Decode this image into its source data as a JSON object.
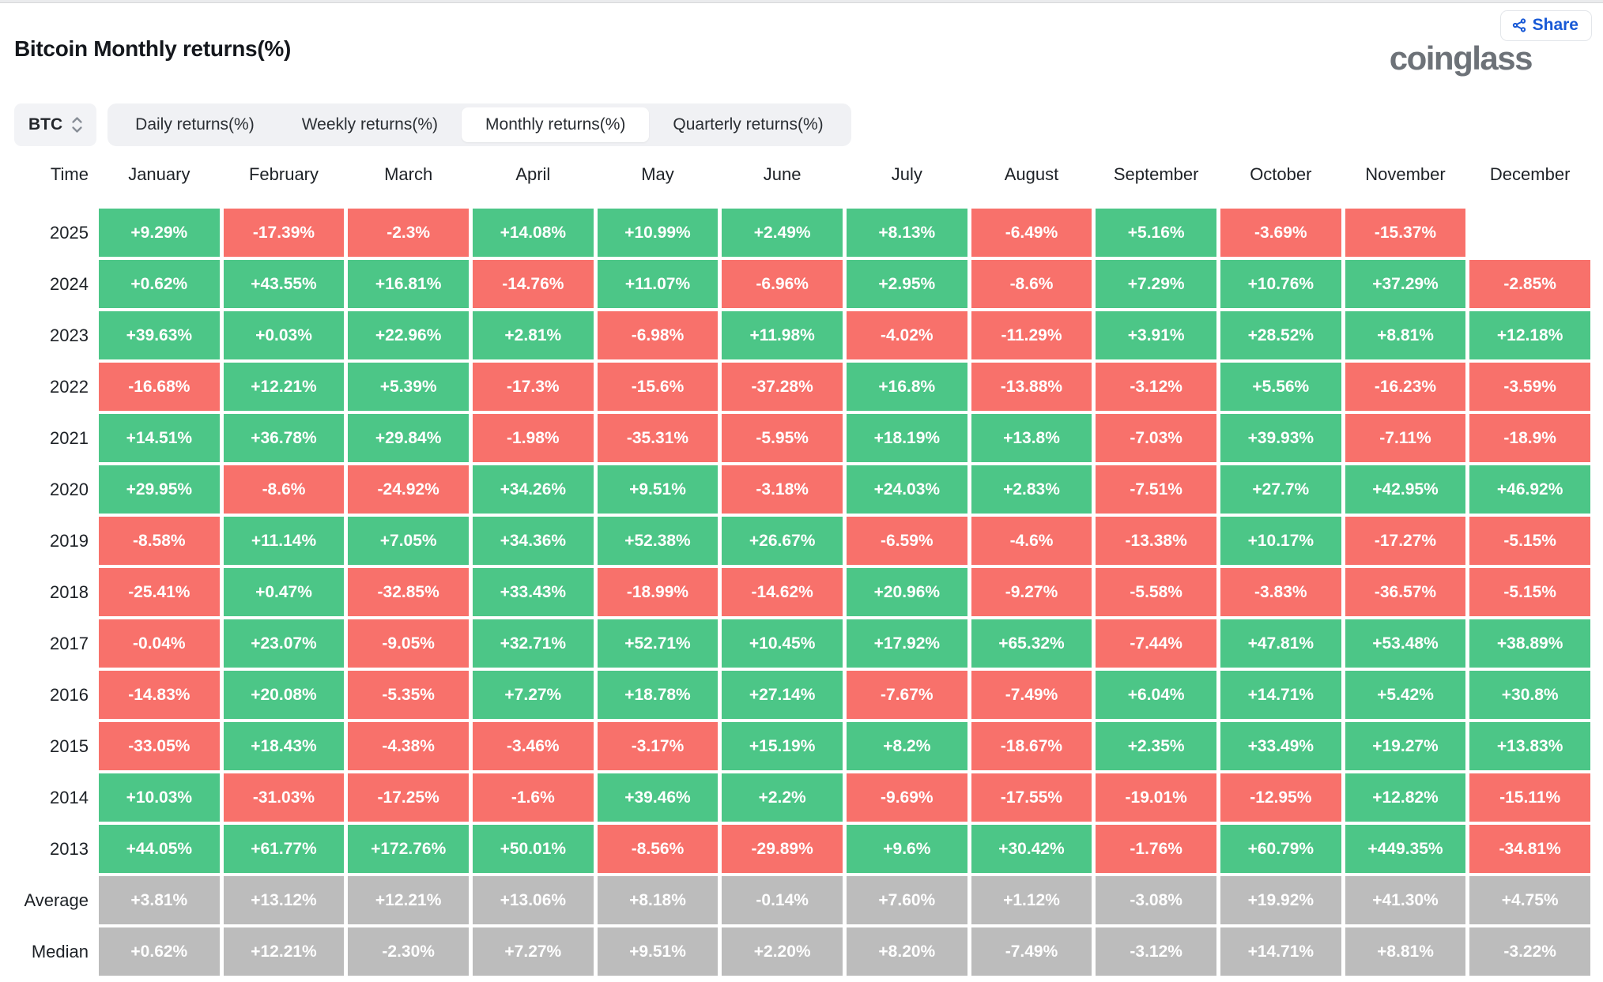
{
  "header": {
    "title": "Bitcoin Monthly returns(%)",
    "brand": "coinglass",
    "share_label": "Share"
  },
  "controls": {
    "symbol_select": {
      "value": "BTC"
    },
    "tabs": [
      {
        "label": "Daily returns(%)",
        "selected": false
      },
      {
        "label": "Weekly returns(%)",
        "selected": false
      },
      {
        "label": "Monthly returns(%)",
        "selected": true
      },
      {
        "label": "Quarterly returns(%)",
        "selected": false
      }
    ]
  },
  "colors": {
    "positive": "#4cc687",
    "negative": "#f8716b",
    "summary": "#bcbcbc",
    "accent_blue": "#1859d6"
  },
  "chart_data": {
    "type": "heatmap",
    "title": "Bitcoin Monthly returns(%)",
    "columns": [
      "Time",
      "January",
      "February",
      "March",
      "April",
      "May",
      "June",
      "July",
      "August",
      "September",
      "October",
      "November",
      "December"
    ],
    "rows": [
      {
        "label": "2025",
        "type": "data",
        "values": [
          "+9.29%",
          "-17.39%",
          "-2.3%",
          "+14.08%",
          "+10.99%",
          "+2.49%",
          "+8.13%",
          "-6.49%",
          "+5.16%",
          "-3.69%",
          "-15.37%",
          ""
        ]
      },
      {
        "label": "2024",
        "type": "data",
        "values": [
          "+0.62%",
          "+43.55%",
          "+16.81%",
          "-14.76%",
          "+11.07%",
          "-6.96%",
          "+2.95%",
          "-8.6%",
          "+7.29%",
          "+10.76%",
          "+37.29%",
          "-2.85%"
        ]
      },
      {
        "label": "2023",
        "type": "data",
        "values": [
          "+39.63%",
          "+0.03%",
          "+22.96%",
          "+2.81%",
          "-6.98%",
          "+11.98%",
          "-4.02%",
          "-11.29%",
          "+3.91%",
          "+28.52%",
          "+8.81%",
          "+12.18%"
        ]
      },
      {
        "label": "2022",
        "type": "data",
        "values": [
          "-16.68%",
          "+12.21%",
          "+5.39%",
          "-17.3%",
          "-15.6%",
          "-37.28%",
          "+16.8%",
          "-13.88%",
          "-3.12%",
          "+5.56%",
          "-16.23%",
          "-3.59%"
        ]
      },
      {
        "label": "2021",
        "type": "data",
        "values": [
          "+14.51%",
          "+36.78%",
          "+29.84%",
          "-1.98%",
          "-35.31%",
          "-5.95%",
          "+18.19%",
          "+13.8%",
          "-7.03%",
          "+39.93%",
          "-7.11%",
          "-18.9%"
        ]
      },
      {
        "label": "2020",
        "type": "data",
        "values": [
          "+29.95%",
          "-8.6%",
          "-24.92%",
          "+34.26%",
          "+9.51%",
          "-3.18%",
          "+24.03%",
          "+2.83%",
          "-7.51%",
          "+27.7%",
          "+42.95%",
          "+46.92%"
        ]
      },
      {
        "label": "2019",
        "type": "data",
        "values": [
          "-8.58%",
          "+11.14%",
          "+7.05%",
          "+34.36%",
          "+52.38%",
          "+26.67%",
          "-6.59%",
          "-4.6%",
          "-13.38%",
          "+10.17%",
          "-17.27%",
          "-5.15%"
        ]
      },
      {
        "label": "2018",
        "type": "data",
        "values": [
          "-25.41%",
          "+0.47%",
          "-32.85%",
          "+33.43%",
          "-18.99%",
          "-14.62%",
          "+20.96%",
          "-9.27%",
          "-5.58%",
          "-3.83%",
          "-36.57%",
          "-5.15%"
        ]
      },
      {
        "label": "2017",
        "type": "data",
        "values": [
          "-0.04%",
          "+23.07%",
          "-9.05%",
          "+32.71%",
          "+52.71%",
          "+10.45%",
          "+17.92%",
          "+65.32%",
          "-7.44%",
          "+47.81%",
          "+53.48%",
          "+38.89%"
        ]
      },
      {
        "label": "2016",
        "type": "data",
        "values": [
          "-14.83%",
          "+20.08%",
          "-5.35%",
          "+7.27%",
          "+18.78%",
          "+27.14%",
          "-7.67%",
          "-7.49%",
          "+6.04%",
          "+14.71%",
          "+5.42%",
          "+30.8%"
        ]
      },
      {
        "label": "2015",
        "type": "data",
        "values": [
          "-33.05%",
          "+18.43%",
          "-4.38%",
          "-3.46%",
          "-3.17%",
          "+15.19%",
          "+8.2%",
          "-18.67%",
          "+2.35%",
          "+33.49%",
          "+19.27%",
          "+13.83%"
        ]
      },
      {
        "label": "2014",
        "type": "data",
        "values": [
          "+10.03%",
          "-31.03%",
          "-17.25%",
          "-1.6%",
          "+39.46%",
          "+2.2%",
          "-9.69%",
          "-17.55%",
          "-19.01%",
          "-12.95%",
          "+12.82%",
          "-15.11%"
        ]
      },
      {
        "label": "2013",
        "type": "data",
        "values": [
          "+44.05%",
          "+61.77%",
          "+172.76%",
          "+50.01%",
          "-8.56%",
          "-29.89%",
          "+9.6%",
          "+30.42%",
          "-1.76%",
          "+60.79%",
          "+449.35%",
          "-34.81%"
        ]
      },
      {
        "label": "Average",
        "type": "summary",
        "values": [
          "+3.81%",
          "+13.12%",
          "+12.21%",
          "+13.06%",
          "+8.18%",
          "-0.14%",
          "+7.60%",
          "+1.12%",
          "-3.08%",
          "+19.92%",
          "+41.30%",
          "+4.75%"
        ]
      },
      {
        "label": "Median",
        "type": "summary",
        "values": [
          "+0.62%",
          "+12.21%",
          "-2.30%",
          "+7.27%",
          "+9.51%",
          "+2.20%",
          "+8.20%",
          "-7.49%",
          "-3.12%",
          "+14.71%",
          "+8.81%",
          "-3.22%"
        ]
      }
    ]
  }
}
